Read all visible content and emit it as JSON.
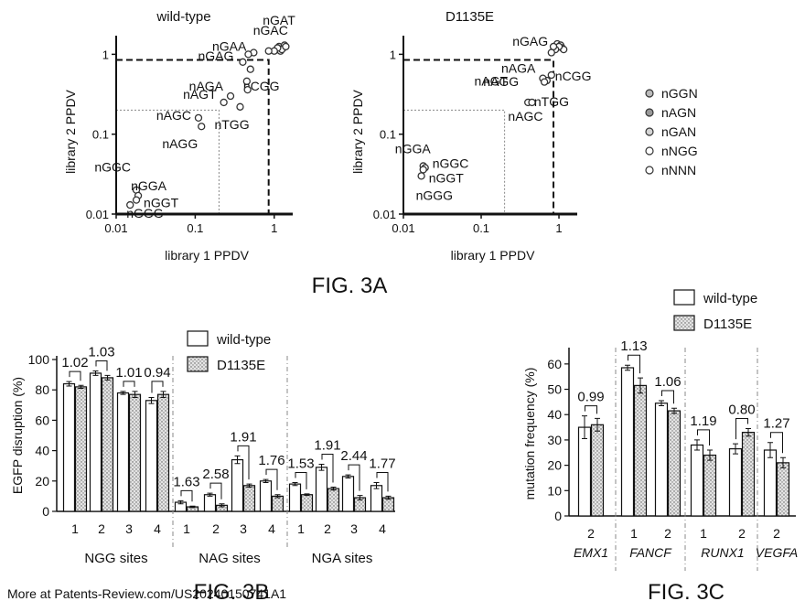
{
  "figure_labels": {
    "fig3a": "FIG. 3A",
    "fig3b": "FIG. 3B",
    "fig3c": "FIG. 3C"
  },
  "footer": "More at Patents-Review.com/US20240150741A1",
  "legend_3a": [
    "nGGN",
    "nAGN",
    "nGAN",
    "nNGG",
    "nNNN"
  ],
  "legend_bars": [
    "wild-type",
    "D1135E"
  ],
  "chart_data": [
    {
      "id": "3A-left",
      "type": "scatter",
      "title": "wild-type",
      "xlabel": "library 1 PPDV",
      "ylabel": "library 2 PPDV",
      "xscale": "log",
      "yscale": "log",
      "xlim": [
        0.01,
        1.5
      ],
      "ylim": [
        0.01,
        1.5
      ],
      "xticks": [
        "0.01",
        "0.1",
        "1"
      ],
      "yticks": [
        "0.01",
        "0.1",
        "1"
      ],
      "points": [
        {
          "x": 1.15,
          "y": 1.25,
          "label": "nGAT"
        },
        {
          "x": 1.3,
          "y": 1.2
        },
        {
          "x": 1.2,
          "y": 1.1
        },
        {
          "x": 1.35,
          "y": 1.3
        },
        {
          "x": 1.25,
          "y": 1.15
        },
        {
          "x": 1.1,
          "y": 1.2
        },
        {
          "x": 1.4,
          "y": 1.25
        },
        {
          "x": 1.0,
          "y": 1.1,
          "label": "nGAC"
        },
        {
          "x": 0.85,
          "y": 1.1
        },
        {
          "x": 0.55,
          "y": 1.05,
          "label": "nGAA"
        },
        {
          "x": 0.47,
          "y": 1.0
        },
        {
          "x": 0.4,
          "y": 0.8,
          "label": "nGAG"
        },
        {
          "x": 0.5,
          "y": 0.65
        },
        {
          "x": 0.45,
          "y": 0.46,
          "label": "nCGG"
        },
        {
          "x": 0.46,
          "y": 0.36
        },
        {
          "x": 0.28,
          "y": 0.3,
          "label": "nAGA"
        },
        {
          "x": 0.23,
          "y": 0.25,
          "label": "nAGT"
        },
        {
          "x": 0.37,
          "y": 0.22,
          "label": "nTGG"
        },
        {
          "x": 0.11,
          "y": 0.16,
          "label": "nAGC"
        },
        {
          "x": 0.12,
          "y": 0.125,
          "label": "nAGG"
        },
        {
          "x": 0.018,
          "y": 0.02,
          "label": "nGGC"
        },
        {
          "x": 0.019,
          "y": 0.017,
          "label": "nGGA"
        },
        {
          "x": 0.018,
          "y": 0.015,
          "label": "nGGT"
        },
        {
          "x": 0.015,
          "y": 0.013,
          "label": "nGGG"
        }
      ],
      "thresholds": {
        "dashed": 0.85,
        "dotted": 0.2
      }
    },
    {
      "id": "3A-right",
      "type": "scatter",
      "title": "D1135E",
      "xlabel": "library 1 PPDV",
      "ylabel": "library 2 PPDV",
      "xscale": "log",
      "yscale": "log",
      "xlim": [
        0.01,
        1.5
      ],
      "ylim": [
        0.01,
        1.5
      ],
      "xticks": [
        "0.01",
        "0.1",
        "1"
      ],
      "yticks": [
        "0.01",
        "0.1",
        "1"
      ],
      "points": [
        {
          "x": 0.95,
          "y": 1.35,
          "label": "nGAG"
        },
        {
          "x": 1.05,
          "y": 1.3
        },
        {
          "x": 1.1,
          "y": 1.2
        },
        {
          "x": 1.15,
          "y": 1.15
        },
        {
          "x": 1.0,
          "y": 1.25
        },
        {
          "x": 0.9,
          "y": 1.15
        },
        {
          "x": 0.8,
          "y": 1.05
        },
        {
          "x": 0.85,
          "y": 1.25
        },
        {
          "x": 0.8,
          "y": 0.55,
          "label": "nCGG"
        },
        {
          "x": 0.7,
          "y": 0.47,
          "label": "nTGG"
        },
        {
          "x": 0.62,
          "y": 0.5,
          "label": "nAGA"
        },
        {
          "x": 0.65,
          "y": 0.45,
          "label": "nAGT"
        },
        {
          "x": 0.4,
          "y": 0.25,
          "label": "nAGG"
        },
        {
          "x": 0.45,
          "y": 0.25,
          "label": "nAGC"
        },
        {
          "x": 0.018,
          "y": 0.04,
          "label": "nGGA"
        },
        {
          "x": 0.019,
          "y": 0.038,
          "label": "nGGC"
        },
        {
          "x": 0.018,
          "y": 0.036,
          "label": "nGGT"
        },
        {
          "x": 0.017,
          "y": 0.03,
          "label": "nGGG"
        }
      ],
      "thresholds": {
        "dashed": 0.85,
        "dotted": 0.2
      }
    },
    {
      "id": "3B",
      "type": "bar",
      "ylabel": "EGFP disruption (%)",
      "ylim": [
        0,
        100
      ],
      "yticks": [
        "0",
        "20",
        "40",
        "60",
        "80",
        "100"
      ],
      "groups": [
        "NGG sites",
        "NAG sites",
        "NGA sites"
      ],
      "categories": [
        "1",
        "2",
        "3",
        "4",
        "1",
        "2",
        "3",
        "4",
        "1",
        "2",
        "3",
        "4"
      ],
      "series": [
        {
          "name": "wild-type",
          "values": [
            84,
            91,
            78,
            73,
            6,
            11,
            34,
            20,
            18,
            29,
            23,
            17
          ],
          "errors": [
            1.5,
            1.5,
            1,
            2,
            1,
            1,
            2.5,
            1,
            1,
            2,
            1,
            2
          ]
        },
        {
          "name": "D1135E",
          "values": [
            82,
            88,
            77,
            77,
            3,
            4,
            17,
            10,
            11,
            15,
            9,
            9
          ],
          "errors": [
            1,
            1.5,
            2,
            2,
            0.5,
            1,
            1,
            1,
            0.5,
            1,
            1.5,
            1
          ]
        }
      ],
      "ratios": [
        "1.02",
        "1.03",
        "1.01",
        "0.94",
        "1.63",
        "2.58",
        "1.91",
        "1.76",
        "1.53",
        "1.91",
        "2.44",
        "1.77"
      ]
    },
    {
      "id": "3C",
      "type": "bar",
      "ylabel": "mutation frequency (%)",
      "ylim": [
        0,
        65
      ],
      "yticks": [
        "0",
        "10",
        "20",
        "30",
        "40",
        "50",
        "60"
      ],
      "categories": [
        "2",
        "1",
        "2",
        "1",
        "2",
        "2"
      ],
      "genes": [
        "EMX1",
        "FANCF",
        "RUNX1",
        "VEGFA"
      ],
      "series": [
        {
          "name": "wild-type",
          "values": [
            35,
            58.5,
            44.5,
            28,
            26.5,
            26
          ],
          "errors": [
            4.5,
            1,
            1,
            2,
            2,
            3
          ]
        },
        {
          "name": "D1135E",
          "values": [
            36,
            51.5,
            41.5,
            24,
            33,
            21
          ],
          "errors": [
            2.5,
            3,
            1,
            2,
            1.5,
            2
          ]
        }
      ],
      "ratios": [
        "0.99",
        "1.13",
        "1.06",
        "1.19",
        "0.80",
        "1.27"
      ]
    }
  ]
}
